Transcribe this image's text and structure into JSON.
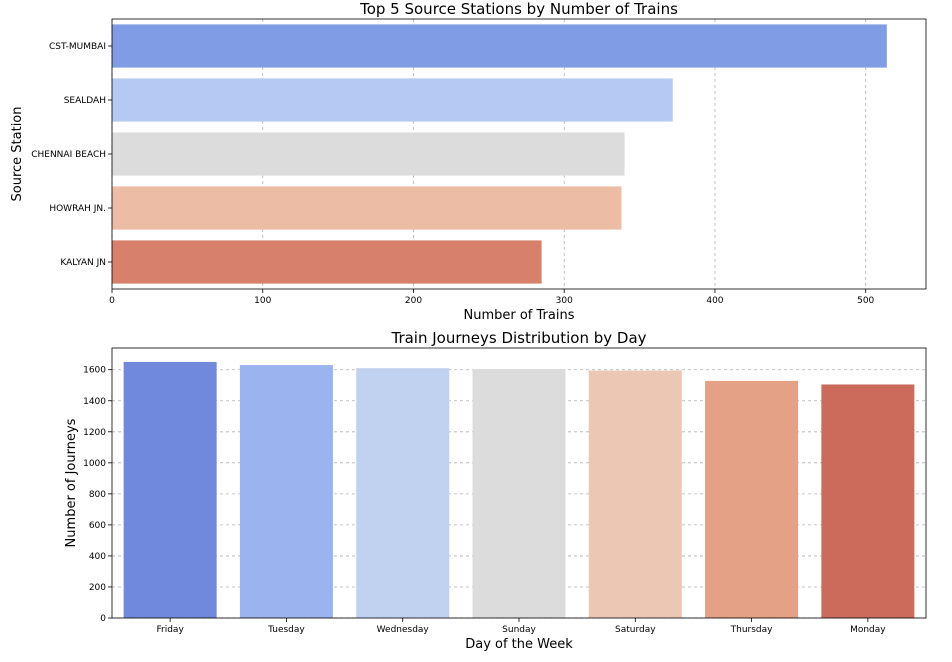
{
  "chart_data": [
    {
      "type": "bar",
      "orientation": "horizontal",
      "title": "Top 5 Source Stations by Number of Trains",
      "xlabel": "Number of Trains",
      "ylabel": "Source Station",
      "categories": [
        "CST-MUMBAI",
        "SEALDAH",
        "CHENNAI BEACH",
        "HOWRAH JN.",
        "KALYAN JN"
      ],
      "values": [
        514,
        372,
        340,
        338,
        285
      ],
      "xlim": [
        0,
        540
      ],
      "xticks": [
        0,
        100,
        200,
        300,
        400,
        500
      ],
      "grid": true,
      "colors": [
        "#7f9ce5",
        "#b5c9f2",
        "#dcdcdc",
        "#ecbca5",
        "#d7806b"
      ]
    },
    {
      "type": "bar",
      "orientation": "vertical",
      "title": "Train Journeys Distribution by Day",
      "xlabel": "Day of the Week",
      "ylabel": "Number of Journeys",
      "categories": [
        "Friday",
        "Tuesday",
        "Wednesday",
        "Sunday",
        "Saturday",
        "Thursday",
        "Monday"
      ],
      "values": [
        1650,
        1630,
        1610,
        1605,
        1595,
        1528,
        1505
      ],
      "ylim": [
        0,
        1740
      ],
      "yticks": [
        0,
        200,
        400,
        600,
        800,
        1000,
        1200,
        1400,
        1600
      ],
      "grid": true,
      "colors": [
        "#7189dd",
        "#9bb4f0",
        "#c1d1f0",
        "#dcdcdc",
        "#ecc7b3",
        "#e5a186",
        "#cc6a5c"
      ]
    }
  ]
}
